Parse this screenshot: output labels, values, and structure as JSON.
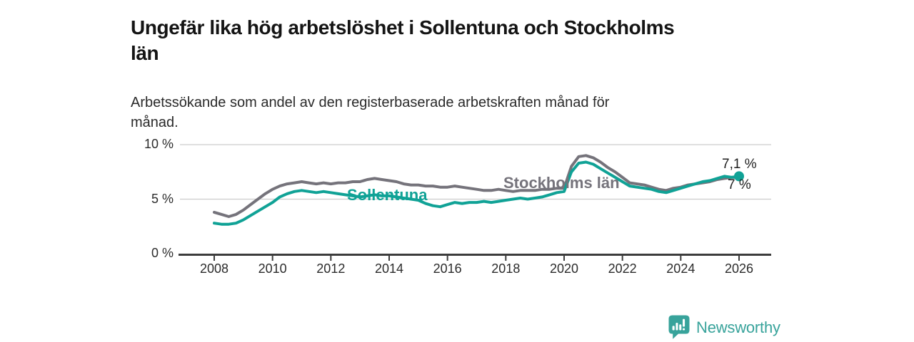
{
  "header": {
    "title": "Ungefär lika hög arbetslöshet i Sollentuna och Stockholms län",
    "title_lines": [
      "Ungefär lika hög arbetslöshet i Sollentuna och Stockholms",
      "län"
    ],
    "subtitle": "Arbetssökande som andel av den registerbaserade arbetskraften månad för månad.",
    "subtitle_lines": [
      "Arbetssökande som andel av den registerbaserade arbetskraften månad för",
      "månad."
    ]
  },
  "annotations": {
    "sollentuna_line_label": "Sollentuna",
    "stockholm_line_label": "Stockholms län",
    "end_label_top": "7,1 %",
    "end_label_bottom": "7 %"
  },
  "logo": {
    "text": "Newsworthy",
    "icon": "newsworthy-speech-bubble-bar-chart-icon",
    "color": "#38a39b"
  },
  "colors": {
    "sollentuna_line": "#10a296",
    "stockholm_line": "#75737b",
    "gridline": "#cccccc",
    "axis": "#3c3c3c",
    "text_dark": "#141414"
  },
  "chart_data": {
    "type": "line",
    "title": "Ungefär lika hög arbetslöshet i Sollentuna och Stockholms län",
    "subtitle": "Arbetssökande som andel av den registerbaserade arbetskraften månad för månad.",
    "unit": "%",
    "grid": "horizontal",
    "legend_position": "inline-line-labels",
    "xlim": [
      2006.8,
      2027.1
    ],
    "ylim": [
      0,
      10
    ],
    "x_ticks": [
      2008,
      2010,
      2012,
      2014,
      2016,
      2018,
      2020,
      2022,
      2024,
      2026
    ],
    "y_ticks": [
      {
        "value": 10,
        "label": "10 %"
      },
      {
        "value": 5,
        "label": "5 %"
      },
      {
        "value": 0,
        "label": "0 %"
      }
    ],
    "series": [
      {
        "name": "Stockholms län",
        "color": "#75737b",
        "end_label": "7 %",
        "end_value": 7.0,
        "end_dot": false,
        "x_start": 2008,
        "x_step": 0.25,
        "values": [
          3.8,
          3.6,
          3.4,
          3.6,
          4.0,
          4.5,
          5.0,
          5.5,
          5.9,
          6.2,
          6.4,
          6.5,
          6.6,
          6.5,
          6.4,
          6.5,
          6.4,
          6.5,
          6.5,
          6.6,
          6.6,
          6.8,
          6.9,
          6.8,
          6.7,
          6.6,
          6.4,
          6.3,
          6.3,
          6.2,
          6.2,
          6.1,
          6.1,
          6.2,
          6.1,
          6.0,
          5.9,
          5.8,
          5.8,
          5.9,
          5.8,
          5.7,
          5.8,
          5.8,
          5.8,
          5.9,
          5.9,
          6.0,
          6.0,
          8.0,
          8.9,
          9.0,
          8.8,
          8.4,
          7.9,
          7.5,
          7.0,
          6.5,
          6.4,
          6.3,
          6.1,
          5.9,
          5.8,
          6.0,
          6.1,
          6.3,
          6.4,
          6.5,
          6.6,
          6.8,
          6.9,
          7.0,
          7.0
        ]
      },
      {
        "name": "Sollentuna",
        "color": "#10a296",
        "end_label": "7,1 %",
        "end_value": 7.1,
        "end_dot": true,
        "x_start": 2008,
        "x_step": 0.25,
        "values": [
          2.8,
          2.7,
          2.7,
          2.8,
          3.1,
          3.5,
          3.9,
          4.3,
          4.7,
          5.2,
          5.5,
          5.7,
          5.8,
          5.7,
          5.6,
          5.7,
          5.6,
          5.5,
          5.4,
          5.3,
          5.2,
          5.3,
          5.4,
          5.3,
          5.3,
          5.2,
          5.1,
          5.0,
          4.9,
          4.6,
          4.4,
          4.3,
          4.5,
          4.7,
          4.6,
          4.7,
          4.7,
          4.8,
          4.7,
          4.8,
          4.9,
          5.0,
          5.1,
          5.0,
          5.1,
          5.2,
          5.4,
          5.6,
          5.7,
          7.5,
          8.3,
          8.4,
          8.2,
          7.8,
          7.4,
          7.0,
          6.6,
          6.2,
          6.1,
          6.0,
          5.9,
          5.7,
          5.6,
          5.8,
          6.0,
          6.2,
          6.4,
          6.6,
          6.7,
          6.9,
          7.1,
          7.0,
          7.1
        ]
      }
    ]
  }
}
